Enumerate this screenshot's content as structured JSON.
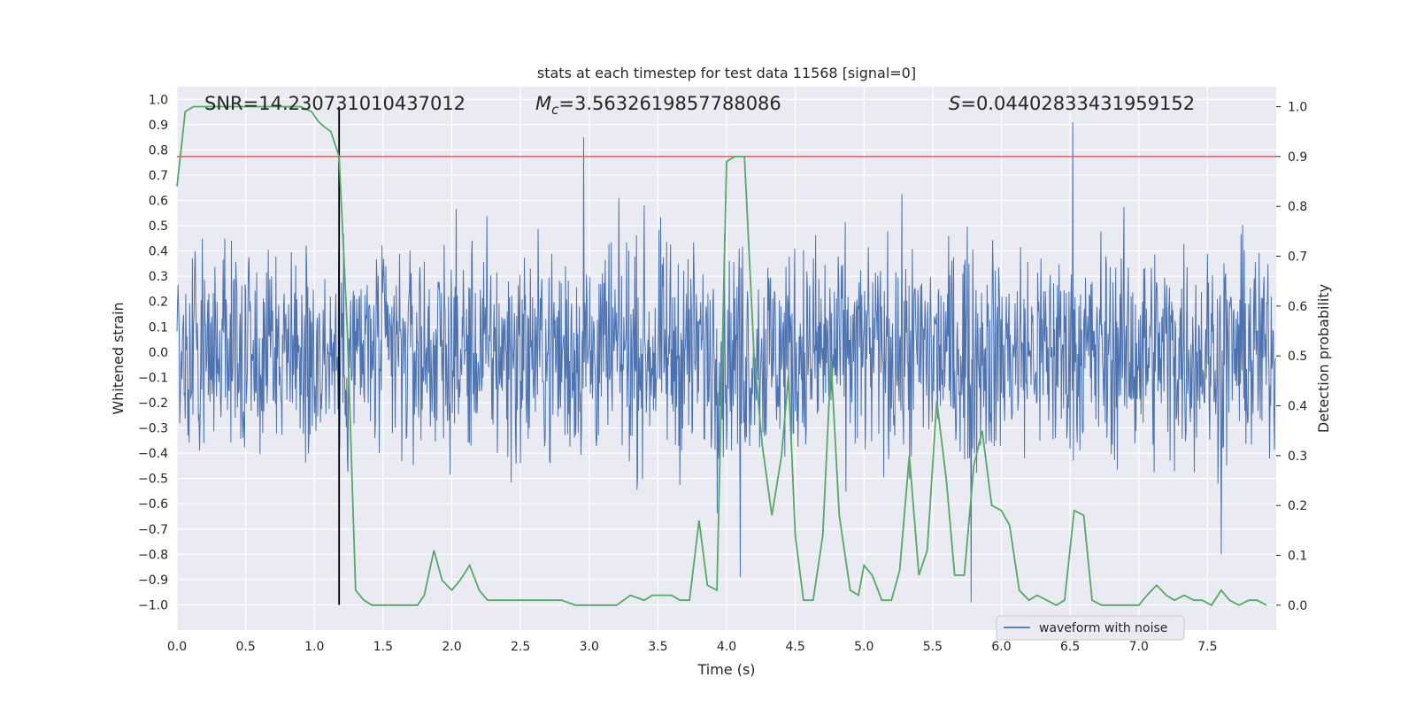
{
  "chart_data": {
    "type": "line",
    "title": "stats at each timestep for test data 11568 [signal=0]",
    "xlabel": "Time (s)",
    "ylabel": "Whitened strain",
    "y2label": "Detection probability",
    "xlim": [
      0,
      8
    ],
    "ylim": [
      -1.1,
      1.05
    ],
    "y2lim": [
      -0.05,
      1.04
    ],
    "xticks": [
      "0.0",
      "0.5",
      "1.0",
      "1.5",
      "2.0",
      "2.5",
      "3.0",
      "3.5",
      "4.0",
      "4.5",
      "5.0",
      "5.5",
      "6.0",
      "6.5",
      "7.0",
      "7.5"
    ],
    "yticks": [
      "1.0",
      "0.9",
      "0.8",
      "0.7",
      "0.6",
      "0.5",
      "0.4",
      "0.3",
      "0.2",
      "0.1",
      "0.0",
      "-0.1",
      "-0.2",
      "-0.3",
      "-0.4",
      "-0.5",
      "-0.6",
      "-0.7",
      "-0.8",
      "-0.9",
      "-1.0"
    ],
    "y2ticks": [
      "1.0",
      "0.9",
      "0.8",
      "0.7",
      "0.6",
      "0.5",
      "0.4",
      "0.3",
      "0.2",
      "0.1",
      "0.0"
    ],
    "annotations": {
      "snr": "SNR=14.230731010437012",
      "mc_symbol": "M",
      "mc_sub": "c",
      "mc_value": "=3.5632619857788086",
      "s_symbol": "S",
      "s_value": "=0.04402833431959152"
    },
    "threshold": 0.9,
    "marker_time": 1.18,
    "grid": true,
    "legend": {
      "position": "lower-right",
      "entries": [
        "waveform with noise"
      ]
    },
    "colors": {
      "waveform": "#4c72b0",
      "probability": "#55a868",
      "threshold": "#c44e52",
      "marker": "#000000",
      "background": "#eaeaf2"
    },
    "series": [
      {
        "name": "waveform with noise",
        "note": "whitened strain noise; dense samples",
        "sample_rate": 250,
        "envelope_typical": 0.38,
        "notable_peaks": [
          {
            "x": 0.33,
            "y": -1.0
          },
          {
            "x": 1.11,
            "y": -0.89
          },
          {
            "x": 2.96,
            "y": 0.85
          },
          {
            "x": 4.1,
            "y": 0.78
          },
          {
            "x": 4.1,
            "y": -0.89
          },
          {
            "x": 5.78,
            "y": 0.97
          },
          {
            "x": 5.78,
            "y": -0.99
          },
          {
            "x": 6.52,
            "y": 0.91
          },
          {
            "x": 7.6,
            "y": -0.8
          }
        ]
      },
      {
        "name": "",
        "axis": "right",
        "x": [
          0.0,
          0.06,
          0.12,
          0.2,
          0.3,
          0.4,
          0.5,
          0.6,
          0.7,
          0.8,
          0.9,
          0.98,
          1.03,
          1.07,
          1.12,
          1.18,
          1.24,
          1.3,
          1.36,
          1.42,
          1.5,
          1.6,
          1.7,
          1.75,
          1.8,
          1.87,
          1.93,
          2.0,
          2.06,
          2.13,
          2.2,
          2.26,
          2.32,
          2.4,
          2.46,
          2.53,
          2.6,
          2.66,
          2.73,
          2.8,
          2.9,
          3.0,
          3.1,
          3.2,
          3.3,
          3.4,
          3.46,
          3.53,
          3.6,
          3.66,
          3.73,
          3.8,
          3.86,
          3.93,
          4.0,
          4.06,
          4.13,
          4.2,
          4.26,
          4.33,
          4.4,
          4.45,
          4.5,
          4.56,
          4.63,
          4.7,
          4.76,
          4.82,
          4.9,
          4.96,
          5.0,
          5.06,
          5.13,
          5.2,
          5.26,
          5.33,
          5.4,
          5.46,
          5.53,
          5.6,
          5.66,
          5.73,
          5.8,
          5.86,
          5.93,
          6.0,
          6.06,
          6.13,
          6.2,
          6.26,
          6.33,
          6.4,
          6.46,
          6.53,
          6.6,
          6.66,
          6.73,
          6.8,
          6.86,
          6.93,
          7.0,
          7.06,
          7.13,
          7.2,
          7.26,
          7.33,
          7.4,
          7.46,
          7.53,
          7.6,
          7.66,
          7.73,
          7.8,
          7.86,
          7.93
        ],
        "values": [
          0.84,
          0.99,
          1.0,
          1.0,
          1.0,
          1.0,
          1.0,
          1.0,
          1.0,
          1.0,
          1.0,
          0.99,
          0.97,
          0.96,
          0.95,
          0.9,
          0.55,
          0.03,
          0.01,
          0.0,
          0.0,
          0.0,
          0.0,
          0.0,
          0.02,
          0.11,
          0.05,
          0.03,
          0.05,
          0.08,
          0.03,
          0.01,
          0.01,
          0.01,
          0.01,
          0.01,
          0.01,
          0.01,
          0.01,
          0.01,
          0.0,
          0.0,
          0.0,
          0.0,
          0.02,
          0.01,
          0.02,
          0.02,
          0.02,
          0.01,
          0.01,
          0.17,
          0.04,
          0.03,
          0.89,
          0.9,
          0.9,
          0.5,
          0.32,
          0.18,
          0.3,
          0.46,
          0.14,
          0.01,
          0.01,
          0.14,
          0.49,
          0.18,
          0.03,
          0.02,
          0.08,
          0.06,
          0.01,
          0.01,
          0.07,
          0.3,
          0.06,
          0.11,
          0.41,
          0.25,
          0.06,
          0.06,
          0.28,
          0.35,
          0.2,
          0.19,
          0.16,
          0.03,
          0.01,
          0.02,
          0.01,
          0.0,
          0.01,
          0.19,
          0.18,
          0.01,
          0.0,
          0.0,
          0.0,
          0.0,
          0.0,
          0.02,
          0.04,
          0.02,
          0.01,
          0.02,
          0.01,
          0.01,
          0.0,
          0.03,
          0.01,
          0.0,
          0.01,
          0.01,
          0.0
        ]
      }
    ]
  }
}
